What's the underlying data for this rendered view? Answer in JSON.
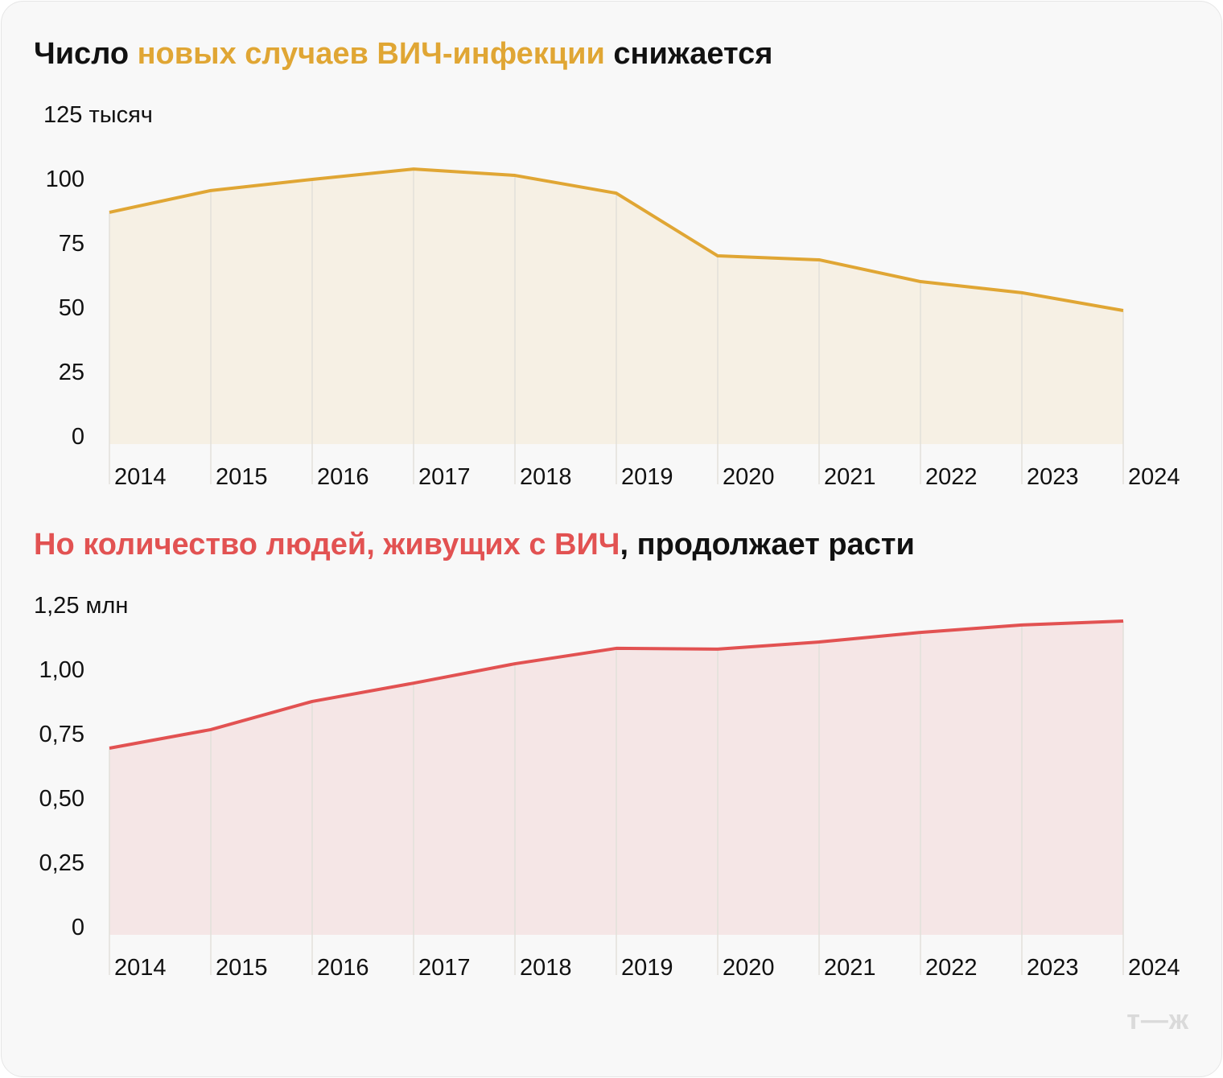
{
  "logo": "т—ж",
  "chart_data": [
    {
      "type": "area",
      "title_parts": [
        {
          "text": "Число ",
          "highlight": false
        },
        {
          "text": "новых случаев ВИЧ-инфекции",
          "highlight": true
        },
        {
          "text": " снижается",
          "highlight": false
        }
      ],
      "unit_label": "125 тысяч",
      "x": [
        "2014",
        "2015",
        "2016",
        "2017",
        "2018",
        "2019",
        "2020",
        "2021",
        "2022",
        "2023",
        "2024"
      ],
      "values": [
        87.3,
        95.5,
        99.7,
        103.6,
        101.2,
        94.5,
        70.9,
        69.4,
        61.2,
        57.0,
        50.3
      ],
      "yticks": [
        "0",
        "25",
        "50",
        "75",
        "100"
      ],
      "ylim": [
        0,
        125
      ],
      "color": "#E0A634",
      "fill": "#F6F0E4",
      "grid": "vertical"
    },
    {
      "type": "area",
      "title_parts": [
        {
          "text": "Но количество людей, живущих с ВИЧ",
          "highlight": true
        },
        {
          "text": ", продолжает расти",
          "highlight": false
        }
      ],
      "unit_label": "1,25 млн",
      "x": [
        "2014",
        "2015",
        "2016",
        "2017",
        "2018",
        "2019",
        "2020",
        "2021",
        "2022",
        "2023",
        "2024"
      ],
      "values": [
        0.703,
        0.773,
        0.879,
        0.948,
        1.021,
        1.079,
        1.076,
        1.103,
        1.139,
        1.167,
        1.182
      ],
      "yticks": [
        "0",
        "0,25",
        "0,50",
        "0,75",
        "1,00"
      ],
      "ylim": [
        0,
        1.25
      ],
      "color": "#E25252",
      "fill": "#F5E6E6",
      "grid": "vertical"
    }
  ]
}
